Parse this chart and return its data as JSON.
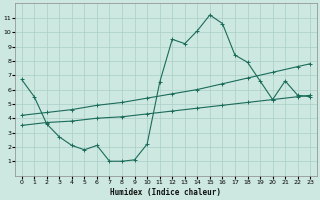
{
  "xlabel": "Humidex (Indice chaleur)",
  "background_color": "#cce8e0",
  "grid_color": "#aacfc8",
  "line_color": "#1a6b5a",
  "xlim": [
    -0.5,
    23.5
  ],
  "ylim": [
    0,
    12
  ],
  "xticks": [
    0,
    1,
    2,
    3,
    4,
    5,
    6,
    7,
    8,
    9,
    10,
    11,
    12,
    13,
    14,
    15,
    16,
    17,
    18,
    19,
    20,
    21,
    22,
    23
  ],
  "yticks": [
    1,
    2,
    3,
    4,
    5,
    6,
    7,
    8,
    9,
    10,
    11
  ],
  "line1_x": [
    0,
    1,
    2,
    3,
    4,
    5,
    6,
    7,
    8,
    9,
    10,
    11,
    12,
    13,
    14,
    15,
    16,
    17,
    18,
    19,
    20,
    21,
    22,
    23
  ],
  "line1_y": [
    6.7,
    5.5,
    3.6,
    2.7,
    2.1,
    1.8,
    2.1,
    1.0,
    1.0,
    1.1,
    2.2,
    6.5,
    9.5,
    9.2,
    10.1,
    11.2,
    10.6,
    8.4,
    7.9,
    6.6,
    5.3,
    6.6,
    5.6,
    5.5
  ],
  "line2_x": [
    0,
    2,
    4,
    6,
    8,
    10,
    12,
    14,
    16,
    18,
    20,
    22,
    23
  ],
  "line2_y": [
    4.2,
    4.4,
    4.6,
    4.9,
    5.1,
    5.4,
    5.7,
    6.0,
    6.4,
    6.8,
    7.2,
    7.6,
    7.8
  ],
  "line3_x": [
    0,
    2,
    4,
    6,
    8,
    10,
    12,
    14,
    16,
    18,
    20,
    22,
    23
  ],
  "line3_y": [
    3.5,
    3.7,
    3.8,
    4.0,
    4.1,
    4.3,
    4.5,
    4.7,
    4.9,
    5.1,
    5.3,
    5.5,
    5.6
  ],
  "marker": "+",
  "markersize": 2.5,
  "linewidth": 0.8,
  "xlabel_fontsize": 5.5,
  "tick_fontsize": 4.5
}
